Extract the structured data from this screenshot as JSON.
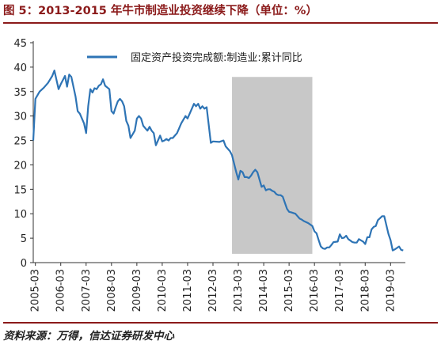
{
  "title": "图 5：2013-2015 年牛市制造业投资继续下降（单位：%）",
  "source": "资料来源：万得，信达证券研发中心",
  "chart_data": {
    "type": "line",
    "series": [
      {
        "name": "固定资产投资完成额:制造业:累计同比",
        "color": "#2e74b5",
        "points": [
          [
            "2005-02",
            25.0
          ],
          [
            "2005-03",
            33.5
          ],
          [
            "2005-05",
            35.0
          ],
          [
            "2005-07",
            35.8
          ],
          [
            "2005-09",
            36.8
          ],
          [
            "2005-11",
            38.2
          ],
          [
            "2005-12",
            39.3
          ],
          [
            "2006-02",
            35.5
          ],
          [
            "2006-03",
            36.5
          ],
          [
            "2006-05",
            38.2
          ],
          [
            "2006-06",
            36.0
          ],
          [
            "2006-07",
            38.5
          ],
          [
            "2006-08",
            38.0
          ],
          [
            "2006-10",
            34.0
          ],
          [
            "2006-11",
            31.0
          ],
          [
            "2006-12",
            30.5
          ],
          [
            "2007-02",
            28.5
          ],
          [
            "2007-03",
            26.5
          ],
          [
            "2007-04",
            32.0
          ],
          [
            "2007-05",
            35.5
          ],
          [
            "2007-06",
            34.8
          ],
          [
            "2007-07",
            35.7
          ],
          [
            "2007-08",
            35.5
          ],
          [
            "2007-09",
            36.2
          ],
          [
            "2007-10",
            36.5
          ],
          [
            "2007-11",
            37.5
          ],
          [
            "2007-12",
            36.2
          ],
          [
            "2008-02",
            35.5
          ],
          [
            "2008-03",
            31.0
          ],
          [
            "2008-04",
            30.5
          ],
          [
            "2008-05",
            31.8
          ],
          [
            "2008-06",
            33.0
          ],
          [
            "2008-07",
            33.5
          ],
          [
            "2008-08",
            33.0
          ],
          [
            "2008-09",
            32.0
          ],
          [
            "2008-10",
            29.0
          ],
          [
            "2008-11",
            28.0
          ],
          [
            "2008-12",
            25.5
          ],
          [
            "2009-02",
            27.0
          ],
          [
            "2009-03",
            29.5
          ],
          [
            "2009-04",
            30.0
          ],
          [
            "2009-05",
            29.5
          ],
          [
            "2009-06",
            28.0
          ],
          [
            "2009-07",
            27.5
          ],
          [
            "2009-08",
            27.0
          ],
          [
            "2009-09",
            27.8
          ],
          [
            "2009-10",
            27.0
          ],
          [
            "2009-11",
            26.5
          ],
          [
            "2009-12",
            24.0
          ],
          [
            "2010-02",
            26.0
          ],
          [
            "2010-03",
            24.8
          ],
          [
            "2010-04",
            25.0
          ],
          [
            "2010-05",
            25.3
          ],
          [
            "2010-06",
            25.0
          ],
          [
            "2010-07",
            25.5
          ],
          [
            "2010-08",
            25.5
          ],
          [
            "2010-09",
            26.0
          ],
          [
            "2010-10",
            26.5
          ],
          [
            "2010-11",
            27.5
          ],
          [
            "2010-12",
            28.5
          ],
          [
            "2011-02",
            30.0
          ],
          [
            "2011-03",
            29.5
          ],
          [
            "2011-05",
            31.5
          ],
          [
            "2011-06",
            32.5
          ],
          [
            "2011-07",
            32.0
          ],
          [
            "2011-08",
            32.5
          ],
          [
            "2011-09",
            31.5
          ],
          [
            "2011-10",
            32.0
          ],
          [
            "2011-11",
            31.5
          ],
          [
            "2011-12",
            31.8
          ],
          [
            "2012-02",
            24.5
          ],
          [
            "2012-03",
            24.8
          ],
          [
            "2012-06",
            24.7
          ],
          [
            "2012-08",
            25.0
          ],
          [
            "2012-09",
            23.8
          ],
          [
            "2012-11",
            22.8
          ],
          [
            "2012-12",
            22.0
          ],
          [
            "2013-02",
            18.5
          ],
          [
            "2013-03",
            17.0
          ],
          [
            "2013-04",
            18.8
          ],
          [
            "2013-05",
            18.5
          ],
          [
            "2013-06",
            17.5
          ],
          [
            "2013-07",
            17.5
          ],
          [
            "2013-08",
            17.3
          ],
          [
            "2013-09",
            17.8
          ],
          [
            "2013-10",
            18.5
          ],
          [
            "2013-11",
            19.0
          ],
          [
            "2013-12",
            18.5
          ],
          [
            "2014-02",
            15.5
          ],
          [
            "2014-03",
            15.8
          ],
          [
            "2014-04",
            14.8
          ],
          [
            "2014-05",
            15.0
          ],
          [
            "2014-06",
            15.0
          ],
          [
            "2014-07",
            14.7
          ],
          [
            "2014-08",
            14.5
          ],
          [
            "2014-09",
            14.0
          ],
          [
            "2014-10",
            13.8
          ],
          [
            "2014-11",
            13.8
          ],
          [
            "2014-12",
            13.5
          ],
          [
            "2015-02",
            11.0
          ],
          [
            "2015-03",
            10.4
          ],
          [
            "2015-04",
            10.3
          ],
          [
            "2015-06",
            10.0
          ],
          [
            "2015-07",
            9.5
          ],
          [
            "2015-08",
            9.0
          ],
          [
            "2015-09",
            8.8
          ],
          [
            "2015-10",
            8.5
          ],
          [
            "2015-11",
            8.3
          ],
          [
            "2015-12",
            8.1
          ],
          [
            "2016-02",
            7.5
          ],
          [
            "2016-03",
            6.4
          ],
          [
            "2016-04",
            6.0
          ],
          [
            "2016-05",
            4.6
          ],
          [
            "2016-06",
            3.3
          ],
          [
            "2016-07",
            2.9
          ],
          [
            "2016-08",
            2.8
          ],
          [
            "2016-09",
            3.1
          ],
          [
            "2016-10",
            3.1
          ],
          [
            "2016-11",
            3.6
          ],
          [
            "2016-12",
            4.2
          ],
          [
            "2017-02",
            4.3
          ],
          [
            "2017-03",
            5.8
          ],
          [
            "2017-04",
            5.0
          ],
          [
            "2017-05",
            5.1
          ],
          [
            "2017-06",
            5.5
          ],
          [
            "2017-07",
            4.8
          ],
          [
            "2017-08",
            4.5
          ],
          [
            "2017-09",
            4.2
          ],
          [
            "2017-10",
            4.1
          ],
          [
            "2017-11",
            4.1
          ],
          [
            "2017-12",
            4.8
          ],
          [
            "2018-02",
            4.3
          ],
          [
            "2018-03",
            3.8
          ],
          [
            "2018-04",
            5.2
          ],
          [
            "2018-05",
            5.2
          ],
          [
            "2018-06",
            6.8
          ],
          [
            "2018-07",
            7.3
          ],
          [
            "2018-08",
            7.5
          ],
          [
            "2018-09",
            8.7
          ],
          [
            "2018-10",
            9.1
          ],
          [
            "2018-11",
            9.5
          ],
          [
            "2018-12",
            9.5
          ],
          [
            "2019-02",
            5.9
          ],
          [
            "2019-03",
            4.6
          ],
          [
            "2019-04",
            2.5
          ],
          [
            "2019-05",
            2.7
          ],
          [
            "2019-06",
            3.0
          ],
          [
            "2019-07",
            3.3
          ],
          [
            "2019-08",
            2.6
          ],
          [
            "2019-09",
            2.5
          ]
        ]
      }
    ],
    "shaded_region": {
      "start": "2012-12",
      "end": "2016-02",
      "color": "#c8c8c8"
    },
    "x_tick_labels": [
      "2005-03",
      "2006-03",
      "2007-03",
      "2008-03",
      "2009-03",
      "2010-03",
      "2011-03",
      "2012-03",
      "2013-03",
      "2014-03",
      "2015-03",
      "2016-03",
      "2017-03",
      "2018-03",
      "2019-03"
    ],
    "ylim": [
      0,
      45
    ],
    "y_ticks": [
      0,
      5,
      10,
      15,
      20,
      25,
      30,
      35,
      40,
      45
    ],
    "xlabel": "",
    "ylabel": "",
    "grid": false,
    "legend_position": "top"
  }
}
